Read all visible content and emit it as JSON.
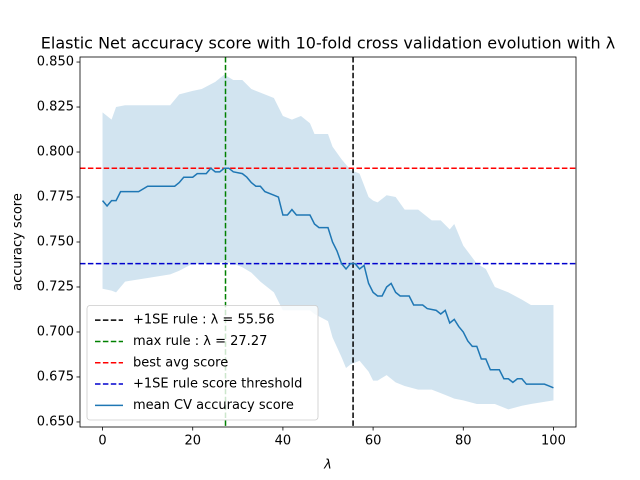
{
  "chart_data": {
    "type": "line",
    "title": "Elastic Net accuracy score with 10-fold cross validation evolution with λ",
    "x_label": "λ",
    "y_label": "accuracy score",
    "xlim": [
      -5,
      105
    ],
    "ylim": [
      0.6472,
      0.8528
    ],
    "xticks": [
      0,
      20,
      40,
      60,
      80,
      100
    ],
    "yticks": [
      {
        "value": 0.65,
        "label": "0.650"
      },
      {
        "value": 0.675,
        "label": "0.675"
      },
      {
        "value": 0.7,
        "label": "0.700"
      },
      {
        "value": 0.725,
        "label": "0.725"
      },
      {
        "value": 0.75,
        "label": "0.750"
      },
      {
        "value": 0.775,
        "label": "0.775"
      },
      {
        "value": 0.8,
        "label": "0.800"
      },
      {
        "value": 0.825,
        "label": "0.825"
      },
      {
        "value": 0.85,
        "label": "0.850"
      }
    ],
    "legend": "lower left",
    "series": [
      {
        "name": "+1SE rule : λ = 55.56",
        "color": "#000000",
        "kind": "vline",
        "x": 55.56
      },
      {
        "name": "max rule : λ = 27.27",
        "color": "#008000",
        "kind": "vline",
        "x": 27.27
      },
      {
        "name": "best avg score",
        "color": "#ff0000",
        "kind": "hline",
        "y": 0.791
      },
      {
        "name": "+1SE rule score threshold",
        "color": "#0000cd",
        "kind": "hline",
        "y": 0.738
      },
      {
        "name": "mean CV accuracy score",
        "color": "#1f77b4",
        "kind": "line",
        "x": [
          0,
          1,
          2,
          3,
          4,
          6,
          8,
          10,
          12,
          14,
          16,
          17,
          18,
          20,
          21,
          23,
          24,
          25,
          26,
          27,
          28,
          29,
          31,
          32,
          33,
          34,
          35,
          36,
          38,
          39,
          40,
          41,
          42,
          43,
          46,
          47,
          48,
          50,
          51,
          52,
          53,
          54,
          55,
          56,
          57,
          58,
          59,
          60,
          61,
          62,
          63,
          64,
          65,
          66,
          68,
          69,
          71,
          72,
          74,
          75,
          76,
          77,
          78,
          79,
          80,
          81,
          82,
          83,
          84,
          85,
          86,
          88,
          89,
          90,
          91,
          92,
          93,
          94,
          98,
          99,
          100
        ],
        "values": [
          0.773,
          0.77,
          0.773,
          0.773,
          0.778,
          0.778,
          0.778,
          0.781,
          0.781,
          0.781,
          0.781,
          0.783,
          0.786,
          0.786,
          0.788,
          0.788,
          0.791,
          0.789,
          0.789,
          0.791,
          0.791,
          0.789,
          0.788,
          0.786,
          0.783,
          0.781,
          0.781,
          0.778,
          0.776,
          0.775,
          0.765,
          0.765,
          0.768,
          0.765,
          0.765,
          0.76,
          0.758,
          0.758,
          0.75,
          0.745,
          0.738,
          0.735,
          0.738,
          0.738,
          0.735,
          0.737,
          0.727,
          0.722,
          0.72,
          0.72,
          0.725,
          0.727,
          0.722,
          0.72,
          0.72,
          0.715,
          0.715,
          0.713,
          0.712,
          0.71,
          0.712,
          0.705,
          0.707,
          0.703,
          0.7,
          0.695,
          0.692,
          0.692,
          0.685,
          0.685,
          0.679,
          0.679,
          0.674,
          0.674,
          0.672,
          0.674,
          0.674,
          0.671,
          0.671,
          0.67,
          0.669
        ]
      }
    ],
    "band": {
      "color": "#1f77b4",
      "x": [
        0,
        2,
        3,
        5,
        10,
        15,
        17,
        20,
        22,
        25,
        27,
        29,
        31,
        33,
        35,
        38,
        40,
        42,
        44,
        46,
        47,
        50,
        51,
        53,
        54,
        55,
        57,
        59,
        60,
        61,
        63,
        65,
        67,
        70,
        73,
        75,
        77,
        78,
        80,
        83,
        85,
        87,
        90,
        93,
        95,
        100
      ],
      "upper": [
        0.822,
        0.818,
        0.825,
        0.826,
        0.826,
        0.826,
        0.832,
        0.834,
        0.835,
        0.839,
        0.843,
        0.84,
        0.84,
        0.835,
        0.833,
        0.83,
        0.82,
        0.818,
        0.82,
        0.816,
        0.81,
        0.81,
        0.803,
        0.796,
        0.793,
        0.79,
        0.788,
        0.775,
        0.773,
        0.772,
        0.776,
        0.775,
        0.768,
        0.768,
        0.762,
        0.762,
        0.757,
        0.76,
        0.748,
        0.738,
        0.735,
        0.725,
        0.722,
        0.718,
        0.715,
        0.715
      ],
      "lower": [
        0.724,
        0.723,
        0.722,
        0.728,
        0.73,
        0.732,
        0.734,
        0.738,
        0.738,
        0.738,
        0.739,
        0.738,
        0.736,
        0.733,
        0.728,
        0.722,
        0.712,
        0.712,
        0.712,
        0.712,
        0.71,
        0.706,
        0.697,
        0.686,
        0.68,
        0.682,
        0.684,
        0.678,
        0.673,
        0.673,
        0.676,
        0.672,
        0.67,
        0.668,
        0.668,
        0.666,
        0.664,
        0.663,
        0.662,
        0.66,
        0.66,
        0.66,
        0.657,
        0.659,
        0.66,
        0.662
      ]
    }
  }
}
